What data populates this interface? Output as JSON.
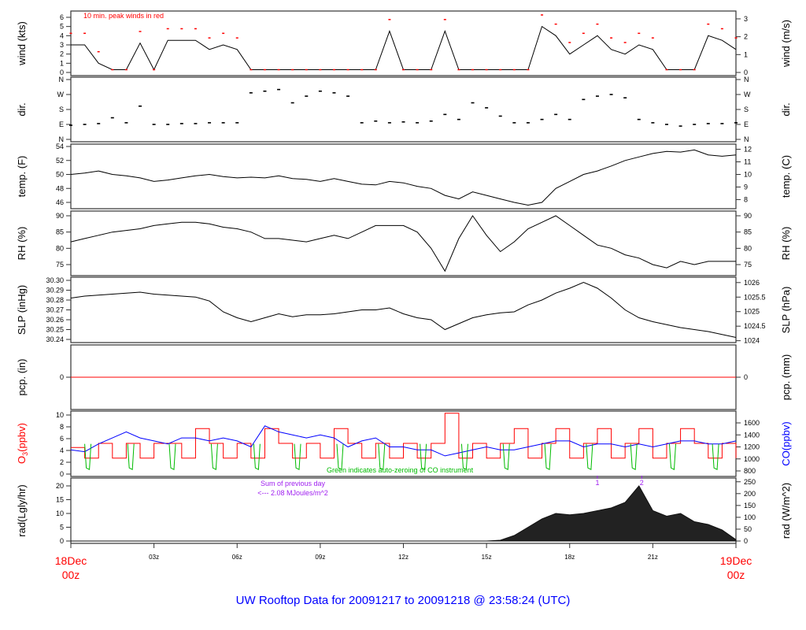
{
  "chart_data": {
    "type": "line",
    "title": "UW Rooftop Data for 20091217  to  20091218 @ 23:58:24  (UTC)",
    "colors": {
      "wind": "#000000",
      "gust": "#ff0000",
      "temp": "#000000",
      "o3": "#ff0000",
      "co": "#0000ff",
      "autozero": "#00bb00",
      "pcp": "#ff0000",
      "rad": "#222222",
      "note": "#a020f0",
      "title": "#0000ff",
      "date": "#ff0000"
    },
    "time_utc": [
      "00:00",
      "00:30",
      "01:00",
      "01:30",
      "02:00",
      "02:30",
      "03:00",
      "03:30",
      "04:00",
      "04:30",
      "05:00",
      "05:30",
      "06:00",
      "06:30",
      "07:00",
      "07:30",
      "08:00",
      "08:30",
      "09:00",
      "09:30",
      "10:00",
      "10:30",
      "11:00",
      "11:30",
      "12:00",
      "12:30",
      "13:00",
      "13:30",
      "14:00",
      "14:30",
      "15:00",
      "15:30",
      "16:00",
      "16:30",
      "17:00",
      "17:30",
      "18:00",
      "18:30",
      "19:00",
      "19:30",
      "20:00",
      "20:30",
      "21:00",
      "21:30",
      "22:00",
      "22:30",
      "23:00",
      "23:30",
      "24:00"
    ],
    "x_ticks": [
      {
        "time": "00:00",
        "label": "18Dec",
        "label2": "00z",
        "end": true
      },
      {
        "time": "03:00",
        "label": "03z"
      },
      {
        "time": "06:00",
        "label": "06z"
      },
      {
        "time": "09:00",
        "label": "09z"
      },
      {
        "time": "12:00",
        "label": "12z"
      },
      {
        "time": "15:00",
        "label": "15z"
      },
      {
        "time": "18:00",
        "label": "18z"
      },
      {
        "time": "21:00",
        "label": "21z"
      },
      {
        "time": "24:00",
        "label": "19Dec",
        "label2": "00z",
        "end": true
      }
    ],
    "panels": {
      "wind": {
        "left_label": "wind (kts)",
        "right_label": "wind (m/s)",
        "left_ticks": [
          {
            "value": 0,
            "label": "0"
          },
          {
            "value": 1,
            "label": "1"
          },
          {
            "value": 2,
            "label": "2"
          },
          {
            "value": 3,
            "label": "3"
          },
          {
            "value": 4,
            "label": "4"
          },
          {
            "value": 5,
            "label": "5"
          },
          {
            "value": 6,
            "label": "6"
          }
        ],
        "right_ticks": [
          {
            "value": 0,
            "label": "0"
          },
          {
            "value": 1,
            "label": "1"
          },
          {
            "value": 2,
            "label": "2"
          },
          {
            "value": 3,
            "label": "3"
          }
        ],
        "annotation": "10 min. peak winds in red",
        "speed_kts": [
          3,
          3,
          1,
          0.3,
          0.3,
          3.2,
          0.3,
          3.5,
          3.5,
          3.5,
          2.5,
          3,
          2.5,
          0.3,
          0.3,
          0.3,
          0.3,
          0.3,
          0.3,
          0.3,
          0.3,
          0.3,
          0.3,
          4.5,
          0.3,
          0.3,
          0.3,
          4.5,
          0.3,
          0.3,
          0.3,
          0.3,
          0.3,
          0.3,
          5,
          4,
          2,
          3,
          4,
          2.5,
          2,
          3,
          2.5,
          0.3,
          0.3,
          0.3,
          4,
          3.5,
          2.5
        ],
        "peak_kts": [
          4,
          4,
          2,
          0.3,
          0.3,
          4.2,
          0.3,
          4.5,
          4.5,
          4.5,
          3.5,
          4,
          3.5,
          0.3,
          0.3,
          0.3,
          0.3,
          0.3,
          0.3,
          0.3,
          0.3,
          0.3,
          0.3,
          5.5,
          0.3,
          0.3,
          0.3,
          5.5,
          0.3,
          0.3,
          0.3,
          0.3,
          0.3,
          0.3,
          6,
          5,
          3,
          4,
          5,
          3.5,
          3,
          4,
          3.5,
          0.3,
          0.3,
          0.3,
          5,
          4.5,
          3.5
        ]
      },
      "dir": {
        "left_label": "dir.",
        "right_label": "dir.",
        "left_ticks": [
          {
            "value": 0,
            "label": "N"
          },
          {
            "value": 90,
            "label": "E"
          },
          {
            "value": 180,
            "label": "S"
          },
          {
            "value": 270,
            "label": "W"
          },
          {
            "value": 360,
            "label": "N"
          }
        ],
        "right_ticks": [
          {
            "value": 0,
            "label": "N"
          },
          {
            "value": 90,
            "label": "E"
          },
          {
            "value": 180,
            "label": "S"
          },
          {
            "value": 270,
            "label": "W"
          },
          {
            "value": 360,
            "label": "N"
          }
        ],
        "degrees": [
          85,
          90,
          95,
          130,
          100,
          200,
          90,
          90,
          95,
          95,
          100,
          100,
          100,
          280,
          290,
          300,
          220,
          260,
          290,
          280,
          260,
          100,
          110,
          100,
          105,
          100,
          110,
          150,
          120,
          220,
          190,
          140,
          100,
          100,
          120,
          150,
          120,
          240,
          260,
          270,
          250,
          120,
          100,
          90,
          80,
          90,
          95,
          95,
          100
        ]
      },
      "temp": {
        "left_label": "temp. (F)",
        "right_label": "temp. (C)",
        "left_ticks": [
          {
            "value": 46,
            "label": "46"
          },
          {
            "value": 48,
            "label": "48"
          },
          {
            "value": 50,
            "label": "50"
          },
          {
            "value": 52,
            "label": "52"
          },
          {
            "value": 54,
            "label": "54"
          }
        ],
        "right_ticks": [
          {
            "value": 8,
            "label": "8"
          },
          {
            "value": 9,
            "label": "9"
          },
          {
            "value": 10,
            "label": "10"
          },
          {
            "value": 11,
            "label": "11"
          },
          {
            "value": 12,
            "label": "12"
          }
        ],
        "values_f": [
          50,
          50.2,
          50.5,
          50,
          49.8,
          49.5,
          49,
          49.2,
          49.5,
          49.8,
          50,
          49.7,
          49.5,
          49.6,
          49.5,
          49.8,
          49.4,
          49.3,
          49,
          49.4,
          49,
          48.6,
          48.5,
          49,
          48.8,
          48.3,
          48,
          47,
          46.5,
          47.5,
          47,
          46.5,
          46,
          45.6,
          46,
          48,
          49,
          50,
          50.5,
          51.2,
          52,
          52.5,
          53,
          53.3,
          53.2,
          53.5,
          52.8,
          52.6,
          52.8
        ]
      },
      "rh": {
        "left_label": "RH (%)",
        "right_label": "RH (%)",
        "left_ticks": [
          {
            "value": 75,
            "label": "75"
          },
          {
            "value": 80,
            "label": "80"
          },
          {
            "value": 85,
            "label": "85"
          },
          {
            "value": 90,
            "label": "90"
          }
        ],
        "right_ticks": [
          {
            "value": 75,
            "label": "75"
          },
          {
            "value": 80,
            "label": "80"
          },
          {
            "value": 85,
            "label": "85"
          },
          {
            "value": 90,
            "label": "90"
          }
        ],
        "values": [
          82,
          83,
          84,
          85,
          85.5,
          86,
          87,
          87.5,
          88,
          88,
          87.5,
          86.5,
          86,
          85,
          83,
          83,
          82.5,
          82,
          83,
          84,
          83,
          85,
          87,
          87,
          87,
          85,
          80,
          73,
          83,
          90,
          84,
          79,
          82,
          86,
          88,
          90,
          87,
          84,
          81,
          80,
          78,
          77,
          75,
          74,
          76,
          75,
          76,
          76,
          76
        ]
      },
      "slp": {
        "left_label": "SLP (inHg)",
        "right_label": "SLP (hPa)",
        "left_ticks": [
          {
            "value": 30.24,
            "label": "30.24"
          },
          {
            "value": 30.25,
            "label": "30.25"
          },
          {
            "value": 30.26,
            "label": "30.26"
          },
          {
            "value": 30.27,
            "label": "30.27"
          },
          {
            "value": 30.28,
            "label": "30.28"
          },
          {
            "value": 30.29,
            "label": "30.29"
          },
          {
            "value": 30.3,
            "label": "30.30"
          }
        ],
        "right_ticks": [
          {
            "value": 1024,
            "label": "1024"
          },
          {
            "value": 1024.5,
            "label": "1024.5"
          },
          {
            "value": 1025,
            "label": "1025"
          },
          {
            "value": 1025.5,
            "label": "1025.5"
          },
          {
            "value": 1026,
            "label": "1026"
          }
        ],
        "values_inhg": [
          30.282,
          30.284,
          30.285,
          30.286,
          30.287,
          30.288,
          30.286,
          30.285,
          30.284,
          30.283,
          30.279,
          30.268,
          30.262,
          30.258,
          30.262,
          30.266,
          30.263,
          30.265,
          30.265,
          30.266,
          30.268,
          30.27,
          30.27,
          30.272,
          30.266,
          30.262,
          30.26,
          30.25,
          30.256,
          30.262,
          30.265,
          30.267,
          30.268,
          30.275,
          30.28,
          30.287,
          30.292,
          30.298,
          30.292,
          30.282,
          30.27,
          30.262,
          30.258,
          30.255,
          30.252,
          30.25,
          30.248,
          30.245,
          30.242
        ]
      },
      "pcp": {
        "left_label": "pcp. (in)",
        "right_label": "pcp. (mm)",
        "left_ticks": [
          {
            "value": 0,
            "label": "0"
          }
        ],
        "right_ticks": [
          {
            "value": 0,
            "label": "0"
          }
        ],
        "values_in": [
          0,
          0
        ]
      },
      "chem": {
        "left_label_main": "O",
        "left_label_sub": "3",
        "left_label_unit": "(ppbv)",
        "right_label": "CO(ppbv)",
        "left_ticks": [
          {
            "value": 0,
            "label": "0"
          },
          {
            "value": 2,
            "label": "2"
          },
          {
            "value": 4,
            "label": "4"
          },
          {
            "value": 6,
            "label": "6"
          },
          {
            "value": 8,
            "label": "8"
          },
          {
            "value": 10,
            "label": "10"
          }
        ],
        "right_ticks": [
          {
            "value": 800,
            "label": "800"
          },
          {
            "value": 1000,
            "label": "1000"
          },
          {
            "value": 1200,
            "label": "1200"
          },
          {
            "value": 1400,
            "label": "1400"
          },
          {
            "value": 1600,
            "label": "1600"
          }
        ],
        "annotation": "Green indicates auto-zeroing of CO instrument",
        "o3_ppbv": [
          4.5,
          2.7,
          5.2,
          2.7,
          5.2,
          2.7,
          5.2,
          5.2,
          2.7,
          7.7,
          5.2,
          2.7,
          5.2,
          2.7,
          7.7,
          5.2,
          2.7,
          5.2,
          2.7,
          7.7,
          5.2,
          2.7,
          5.2,
          2.7,
          5.2,
          2.7,
          5.2,
          10.3,
          2.7,
          5.2,
          2.7,
          5.2,
          7.7,
          2.7,
          5.2,
          7.7,
          2.7,
          5.2,
          7.7,
          2.7,
          5.2,
          7.7,
          2.7,
          5.2,
          7.7,
          5.2,
          2.7,
          5.2,
          2.7
        ],
        "co_ppbv": [
          1150,
          1120,
          1250,
          1350,
          1450,
          1350,
          1300,
          1250,
          1350,
          1350,
          1300,
          1350,
          1300,
          1200,
          1550,
          1450,
          1400,
          1350,
          1400,
          1350,
          1200,
          1300,
          1350,
          1200,
          1200,
          1150,
          1150,
          1050,
          1100,
          1150,
          1200,
          1150,
          1150,
          1200,
          1250,
          1300,
          1300,
          1200,
          1250,
          1250,
          1200,
          1250,
          1200,
          1250,
          1300,
          1300,
          1250,
          1250,
          1300
        ],
        "autozero_times": [
          "00:30",
          "02:03",
          "03:33",
          "05:04",
          "06:36",
          "08:04",
          "09:36",
          "11:06",
          "12:36",
          "14:06",
          "15:36",
          "17:06",
          "18:36",
          "20:12",
          "21:36",
          "23:09"
        ],
        "autozero_min_ppbv": 850
      },
      "rad": {
        "left_label": "rad(Lgly/hr)",
        "right_label": "rad (W/m^2)",
        "left_ticks": [
          {
            "value": 0,
            "label": "0"
          },
          {
            "value": 5,
            "label": "5"
          },
          {
            "value": 10,
            "label": "10"
          },
          {
            "value": 15,
            "label": "15"
          },
          {
            "value": 20,
            "label": "20"
          }
        ],
        "right_ticks": [
          {
            "value": 0,
            "label": "0"
          },
          {
            "value": 50,
            "label": "50"
          },
          {
            "value": 100,
            "label": "100"
          },
          {
            "value": 150,
            "label": "150"
          },
          {
            "value": 200,
            "label": "200"
          },
          {
            "value": 250,
            "label": "250"
          }
        ],
        "note_line1": "Sum of previous day",
        "note_line2": "<--- 2.08 MJoules/m^2",
        "markers": [
          {
            "time": "19:00",
            "label": "1"
          },
          {
            "time": "20:36",
            "label": "2"
          }
        ],
        "values_lgly_hr": [
          0,
          0,
          0,
          0,
          0,
          0,
          0,
          0,
          0,
          0,
          0,
          0,
          0,
          0,
          0,
          0,
          0,
          0,
          0,
          0,
          0,
          0,
          0,
          0,
          0,
          0,
          0,
          0,
          0,
          0,
          0,
          0.3,
          2,
          5,
          8,
          10,
          9.5,
          10,
          11,
          12,
          14,
          20,
          11,
          9,
          10,
          7,
          6,
          4,
          0.5
        ]
      }
    }
  }
}
